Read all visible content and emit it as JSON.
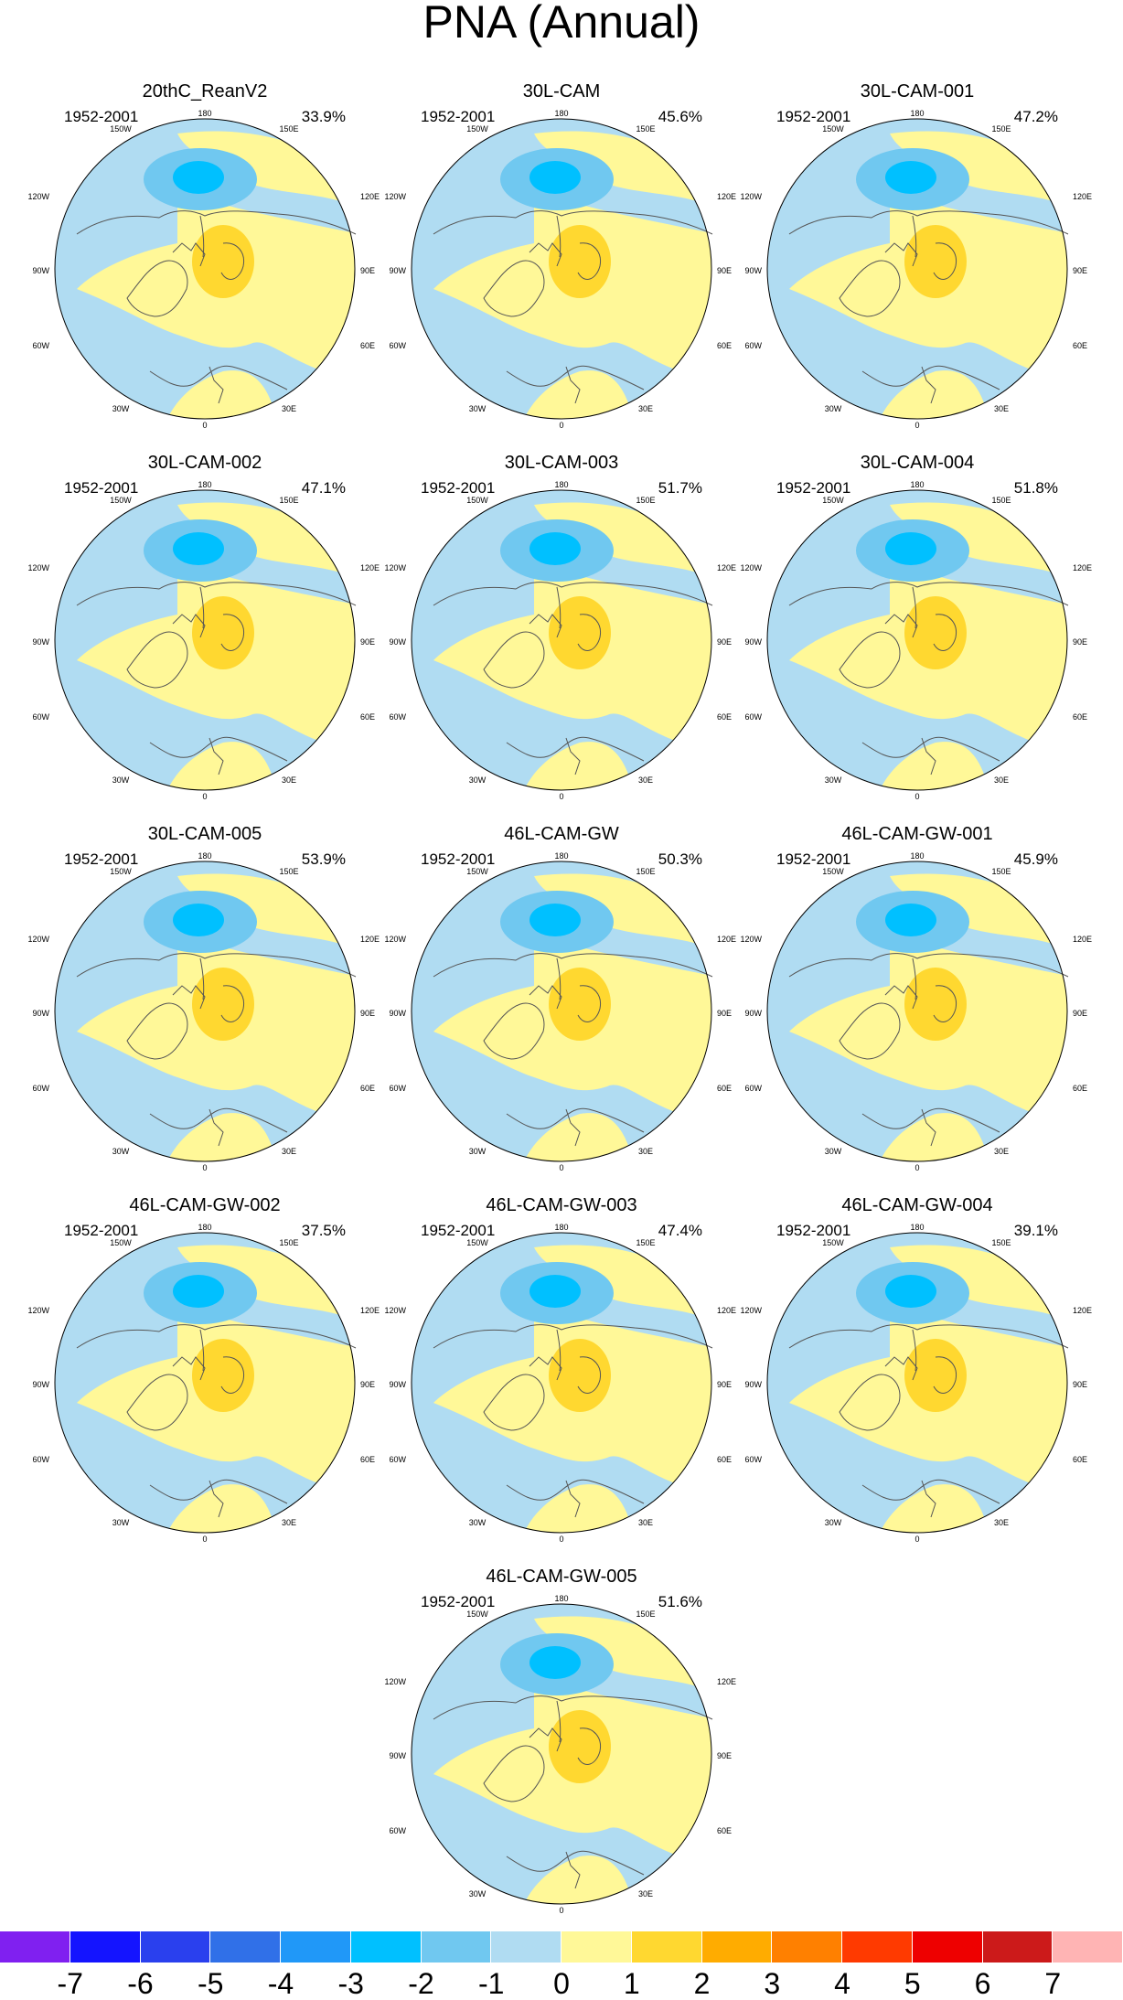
{
  "title": "PNA (Annual)",
  "grid_labels": {
    "top": "180",
    "bottom": "0",
    "left_upper": "120W",
    "left_mid": "90W",
    "left_lower": "60W",
    "right_upper": "120E",
    "right_mid": "90E",
    "right_lower": "60E",
    "top_left": "150W",
    "top_right": "150E",
    "bottom_left": "30W",
    "bottom_right": "30E"
  },
  "panels": [
    {
      "name": "20thC_ReanV2",
      "period": "1952-2001",
      "pct": "33.9%"
    },
    {
      "name": "30L-CAM",
      "period": "1952-2001",
      "pct": "45.6%"
    },
    {
      "name": "30L-CAM-001",
      "period": "1952-2001",
      "pct": "47.2%"
    },
    {
      "name": "30L-CAM-002",
      "period": "1952-2001",
      "pct": "47.1%"
    },
    {
      "name": "30L-CAM-003",
      "period": "1952-2001",
      "pct": "51.7%"
    },
    {
      "name": "30L-CAM-004",
      "period": "1952-2001",
      "pct": "51.8%"
    },
    {
      "name": "30L-CAM-005",
      "period": "1952-2001",
      "pct": "53.9%"
    },
    {
      "name": "46L-CAM-GW",
      "period": "1952-2001",
      "pct": "50.3%"
    },
    {
      "name": "46L-CAM-GW-001",
      "period": "1952-2001",
      "pct": "45.9%"
    },
    {
      "name": "46L-CAM-GW-002",
      "period": "1952-2001",
      "pct": "37.5%"
    },
    {
      "name": "46L-CAM-GW-003",
      "period": "1952-2001",
      "pct": "47.4%"
    },
    {
      "name": "46L-CAM-GW-004",
      "period": "1952-2001",
      "pct": "39.1%"
    },
    {
      "name": "46L-CAM-GW-005",
      "period": "1952-2001",
      "pct": "51.6%"
    }
  ],
  "colorbar": {
    "labels": [
      "-7",
      "-6",
      "-5",
      "-4",
      "-3",
      "-2",
      "-1",
      "0",
      "1",
      "2",
      "3",
      "4",
      "5",
      "6",
      "7"
    ],
    "colors": [
      "#8020f0",
      "#1414ff",
      "#2a40ee",
      "#3070e8",
      "#2098f8",
      "#00c0ff",
      "#70c8f0",
      "#b0dcf2",
      "#fff898",
      "#ffd830",
      "#ffac00",
      "#ff8000",
      "#ff3a00",
      "#ee0000",
      "#cc1a1a",
      "#ffb4b4"
    ]
  },
  "colors": {
    "neg1": "#b0dcf2",
    "neg2": "#70c8f0",
    "neg3": "#00c0ff",
    "pos1": "#fff898",
    "pos2": "#ffd830"
  }
}
